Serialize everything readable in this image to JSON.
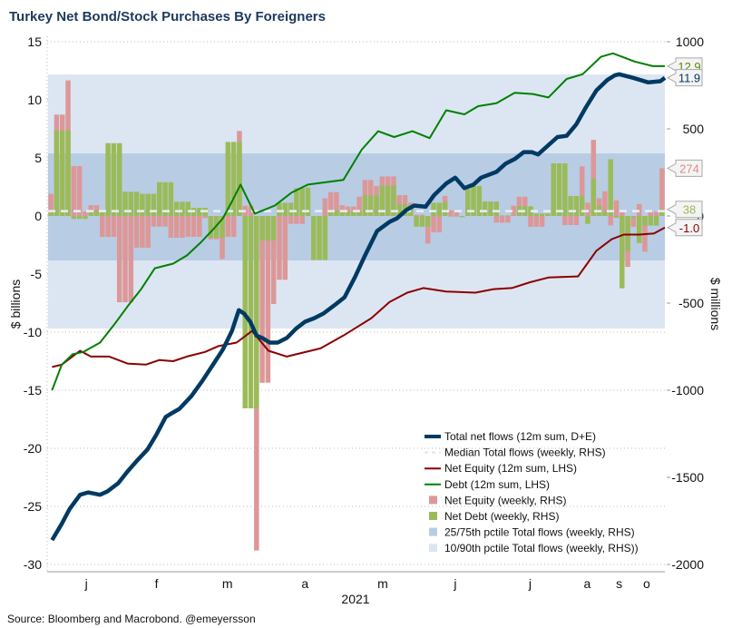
{
  "chart_data": {
    "type": "bar+line",
    "title": "Turkey Net Bond/Stock Purchases By Foreigners",
    "source": "Source: Bloomberg and Macrobond. @emeyersson",
    "xlabel": "2021",
    "ylabel_left": "$ billions",
    "ylabel_right": "$ millions",
    "ylim_left": [
      -30,
      15
    ],
    "ylim_right": [
      -2000,
      1000
    ],
    "yticks_left": [
      "15",
      "10",
      "5",
      "0",
      "-5",
      "-10",
      "-15",
      "-20",
      "-25",
      "-30"
    ],
    "yticks_right": [
      "1000",
      "500",
      "0",
      "-500",
      "-1000",
      "-1500",
      "-2000"
    ],
    "x_units": "weekly bar index (0-107)",
    "month_ticks": [
      {
        "label": "j",
        "pos": 6.2
      },
      {
        "label": "f",
        "pos": 18.5
      },
      {
        "label": "m",
        "pos": 30.9
      },
      {
        "label": "a",
        "pos": 44.5
      },
      {
        "label": "m",
        "pos": 58.1
      },
      {
        "label": "j",
        "pos": 70.8
      },
      {
        "label": "j",
        "pos": 83.9
      },
      {
        "label": "a",
        "pos": 93.9
      },
      {
        "label": "s",
        "pos": 99.5
      },
      {
        "label": "o",
        "pos": 104.3
      }
    ],
    "grid": true,
    "legend_placement": "bottom-right",
    "colors": {
      "total": "#003a63",
      "median": "#e8eef6",
      "equity_line": "#8b0000",
      "debt_line": "#008000",
      "equity_bar": "#dc9898",
      "debt_bar": "#9bbb59",
      "band_25_75": "#b8cce4",
      "band_10_90": "#dce6f2"
    },
    "bands": {
      "p10": -646,
      "p90": 812,
      "p25": -255,
      "p75": 359,
      "median": 28
    },
    "bars_equity_debt_rhs": [
      [
        127,
        31
      ],
      [
        582,
        491
      ],
      [
        582,
        491
      ],
      [
        778,
        491
      ],
      [
        286,
        -17
      ],
      [
        286,
        -17
      ],
      [
        26,
        -17
      ],
      [
        62,
        31
      ],
      [
        62,
        31
      ],
      [
        -120,
        22
      ],
      [
        -120,
        418
      ],
      [
        -120,
        418
      ],
      [
        -495,
        418
      ],
      [
        -495,
        139
      ],
      [
        -495,
        139
      ],
      [
        -182,
        139
      ],
      [
        -182,
        127
      ],
      [
        -182,
        127
      ],
      [
        -61,
        127
      ],
      [
        -61,
        194
      ],
      [
        -61,
        194
      ],
      [
        -125,
        194
      ],
      [
        -125,
        82
      ],
      [
        -125,
        82
      ],
      [
        -120,
        82
      ],
      [
        -120,
        47
      ],
      [
        -120,
        47
      ],
      [
        -12,
        47
      ],
      [
        -134,
        -125
      ],
      [
        -134,
        -125
      ],
      [
        -247,
        -125
      ],
      [
        -120,
        425
      ],
      [
        -120,
        425
      ],
      [
        488,
        425
      ],
      [
        59,
        -1104
      ],
      [
        59,
        -1104
      ],
      [
        -1920,
        -1104
      ],
      [
        -957,
        -141
      ],
      [
        -957,
        -141
      ],
      [
        -505,
        -141
      ],
      [
        -366,
        76
      ],
      [
        -366,
        76
      ],
      [
        -45,
        76
      ],
      [
        -45,
        160
      ],
      [
        -45,
        160
      ],
      [
        0,
        163
      ],
      [
        0,
        -253
      ],
      [
        0,
        -253
      ],
      [
        102,
        -253
      ],
      [
        137,
        33
      ],
      [
        137,
        33
      ],
      [
        62,
        33
      ],
      [
        54,
        24
      ],
      [
        54,
        24
      ],
      [
        111,
        24
      ],
      [
        207,
        118
      ],
      [
        207,
        118
      ],
      [
        172,
        118
      ],
      [
        227,
        175
      ],
      [
        227,
        175
      ],
      [
        227,
        175
      ],
      [
        120,
        68
      ],
      [
        120,
        68
      ],
      [
        76,
        59
      ],
      [
        7,
        -62
      ],
      [
        7,
        -62
      ],
      [
        -158,
        -62
      ],
      [
        -94,
        76
      ],
      [
        -94,
        76
      ],
      [
        115,
        80
      ],
      [
        33,
        -3
      ],
      [
        33,
        -3
      ],
      [
        0,
        -7
      ],
      [
        0,
        155
      ],
      [
        0,
        172
      ],
      [
        0,
        172
      ],
      [
        0,
        83
      ],
      [
        0,
        83
      ],
      [
        -38,
        83
      ],
      [
        -38,
        3
      ],
      [
        -38,
        3
      ],
      [
        59,
        3
      ],
      [
        111,
        56
      ],
      [
        111,
        56
      ],
      [
        -62,
        56
      ],
      [
        -62,
        14
      ],
      [
        -62,
        14
      ],
      [
        0,
        14
      ],
      [
        0,
        302
      ],
      [
        0,
        302
      ],
      [
        -52,
        302
      ],
      [
        -52,
        115
      ],
      [
        -52,
        115
      ],
      [
        285,
        115
      ],
      [
        76,
        -45
      ],
      [
        437,
        212
      ],
      [
        102,
        59
      ],
      [
        142,
        24
      ],
      [
        -54,
        326
      ],
      [
        90,
        -10
      ],
      [
        33,
        -415
      ],
      [
        -292,
        -201
      ],
      [
        -62,
        -10
      ],
      [
        68,
        -155
      ],
      [
        -205,
        -55
      ],
      [
        24,
        -55
      ],
      [
        24,
        -55
      ],
      [
        274,
        38
      ]
    ],
    "series": [
      {
        "name": "Total net flows (12m sum, D+E)",
        "axis": "left",
        "points": [
          [
            0.2,
            -27.9
          ],
          [
            1.9,
            -26.5
          ],
          [
            3.3,
            -25.2
          ],
          [
            5.1,
            -24.0
          ],
          [
            6.5,
            -23.8
          ],
          [
            8.6,
            -24.0
          ],
          [
            9.9,
            -23.7
          ],
          [
            11.8,
            -23.0
          ],
          [
            13.4,
            -22.0
          ],
          [
            15.0,
            -21.1
          ],
          [
            16.9,
            -20.1
          ],
          [
            18.5,
            -18.8
          ],
          [
            20.1,
            -17.3
          ],
          [
            21.1,
            -17.0
          ],
          [
            22.5,
            -16.6
          ],
          [
            24.6,
            -15.5
          ],
          [
            26.5,
            -14.2
          ],
          [
            28.5,
            -12.7
          ],
          [
            30.1,
            -11.5
          ],
          [
            31.7,
            -9.9
          ],
          [
            32.9,
            -8.1
          ],
          [
            33.8,
            -8.4
          ],
          [
            34.9,
            -9.1
          ],
          [
            36.0,
            -10.3
          ],
          [
            37.0,
            -10.5
          ],
          [
            38.3,
            -10.9
          ],
          [
            39.7,
            -10.9
          ],
          [
            41.3,
            -10.5
          ],
          [
            42.9,
            -9.7
          ],
          [
            44.5,
            -9.1
          ],
          [
            46.1,
            -8.8
          ],
          [
            47.7,
            -8.4
          ],
          [
            49.6,
            -7.7
          ],
          [
            51.4,
            -7.0
          ],
          [
            53.3,
            -5.2
          ],
          [
            54.9,
            -3.5
          ],
          [
            57.1,
            -1.3
          ],
          [
            59.3,
            -0.5
          ],
          [
            60.6,
            -0.2
          ],
          [
            62.2,
            0.5
          ],
          [
            63.6,
            0.9
          ],
          [
            65.6,
            0.8
          ],
          [
            67.1,
            1.8
          ],
          [
            69.2,
            2.8
          ],
          [
            70.8,
            3.3
          ],
          [
            72.4,
            2.4
          ],
          [
            74.0,
            2.7
          ],
          [
            75.3,
            3.3
          ],
          [
            78.0,
            3.8
          ],
          [
            79.6,
            4.5
          ],
          [
            81.2,
            4.9
          ],
          [
            82.8,
            5.5
          ],
          [
            84.2,
            5.5
          ],
          [
            85.3,
            5.3
          ],
          [
            87.1,
            6.1
          ],
          [
            88.7,
            6.8
          ],
          [
            90.3,
            6.9
          ],
          [
            92.0,
            7.9
          ],
          [
            93.6,
            9.3
          ],
          [
            95.5,
            10.8
          ],
          [
            97.4,
            11.7
          ],
          [
            98.7,
            12.1
          ],
          [
            99.5,
            12.2
          ],
          [
            101.9,
            11.9
          ],
          [
            104.6,
            11.5
          ],
          [
            106.7,
            11.6
          ],
          [
            107.5,
            11.9
          ]
        ]
      },
      {
        "name": "Net Equity (12m sum, LHS)",
        "axis": "left",
        "points": [
          [
            0.2,
            -13.0
          ],
          [
            1.9,
            -12.8
          ],
          [
            5.1,
            -11.6
          ],
          [
            7.0,
            -12.1
          ],
          [
            10.2,
            -12.1
          ],
          [
            13.4,
            -12.7
          ],
          [
            16.6,
            -12.8
          ],
          [
            19.0,
            -12.4
          ],
          [
            21.4,
            -12.5
          ],
          [
            23.8,
            -12.1
          ],
          [
            27.0,
            -11.7
          ],
          [
            29.3,
            -11.2
          ],
          [
            32.5,
            -10.9
          ],
          [
            35.2,
            -9.9
          ],
          [
            38.1,
            -11.6
          ],
          [
            41.3,
            -12.1
          ],
          [
            47.2,
            -11.4
          ],
          [
            51.2,
            -10.3
          ],
          [
            56.1,
            -8.8
          ],
          [
            59.3,
            -7.4
          ],
          [
            62.4,
            -6.6
          ],
          [
            65.2,
            -6.2
          ],
          [
            69.2,
            -6.5
          ],
          [
            74.3,
            -6.6
          ],
          [
            77.5,
            -6.3
          ],
          [
            80.7,
            -6.2
          ],
          [
            83.9,
            -5.7
          ],
          [
            87.1,
            -5.3
          ],
          [
            92.3,
            -5.2
          ],
          [
            93.9,
            -4.1
          ],
          [
            95.5,
            -3.0
          ],
          [
            98.2,
            -2.0
          ],
          [
            100.3,
            -1.6
          ],
          [
            103.0,
            -1.6
          ],
          [
            105.6,
            -1.5
          ],
          [
            107.5,
            -1.0
          ]
        ]
      },
      {
        "name": "Debt (12m sum, LHS)",
        "axis": "left",
        "points": [
          [
            0.2,
            -15.0
          ],
          [
            1.9,
            -12.8
          ],
          [
            3.8,
            -11.9
          ],
          [
            5.7,
            -11.7
          ],
          [
            8.6,
            -10.9
          ],
          [
            11.0,
            -9.4
          ],
          [
            13.4,
            -7.8
          ],
          [
            15.8,
            -6.3
          ],
          [
            18.2,
            -4.5
          ],
          [
            21.4,
            -4.1
          ],
          [
            23.8,
            -3.4
          ],
          [
            26.2,
            -2.3
          ],
          [
            28.5,
            -1.1
          ],
          [
            30.1,
            -0.2
          ],
          [
            31.7,
            1.25
          ],
          [
            33.2,
            2.7
          ],
          [
            35.7,
            0.2
          ],
          [
            39.2,
            0.9
          ],
          [
            42.1,
            2.0
          ],
          [
            45.0,
            2.7
          ],
          [
            51.2,
            3.1
          ],
          [
            54.4,
            5.7
          ],
          [
            57.3,
            7.3
          ],
          [
            60.1,
            6.8
          ],
          [
            63.3,
            7.3
          ],
          [
            66.3,
            6.7
          ],
          [
            69.2,
            9.1
          ],
          [
            72.4,
            8.75
          ],
          [
            74.8,
            9.45
          ],
          [
            78.0,
            9.7
          ],
          [
            81.2,
            10.6
          ],
          [
            84.4,
            10.5
          ],
          [
            87.1,
            10.2
          ],
          [
            90.3,
            11.8
          ],
          [
            93.1,
            12.2
          ],
          [
            96.3,
            13.7
          ],
          [
            98.4,
            14.0
          ],
          [
            100.0,
            13.7
          ],
          [
            102.2,
            13.3
          ],
          [
            105.4,
            12.9
          ],
          [
            107.5,
            12.9
          ]
        ]
      }
    ],
    "end_labels": [
      {
        "text": "12.9",
        "axis": "left",
        "value": 12.9,
        "color": "#5a8a00"
      },
      {
        "text": "11.9",
        "axis": "left",
        "value": 11.9,
        "color": "#003a63"
      },
      {
        "text": "274",
        "axis": "right",
        "value": 274,
        "color": "#dc8a8a"
      },
      {
        "text": "38",
        "axis": "right",
        "value": 38,
        "color": "#9bbb59"
      },
      {
        "text": "-1.0",
        "axis": "left",
        "value": -1.0,
        "color": "#8b0000"
      }
    ],
    "legend": [
      {
        "label": "Total net flows (12m sum, D+E)",
        "kind": "thick-line",
        "color": "#003a63"
      },
      {
        "label": "Median Total flows (weekly, RHS)",
        "kind": "dash",
        "color": "#dce6f2"
      },
      {
        "label": "Net Equity (12m sum, LHS)",
        "kind": "line",
        "color": "#8b0000"
      },
      {
        "label": "Debt (12m sum, LHS)",
        "kind": "line",
        "color": "#008000"
      },
      {
        "label": "Net Equity (weekly, RHS)",
        "kind": "box",
        "color": "#dc9898"
      },
      {
        "label": "Net Debt (weekly, RHS)",
        "kind": "box",
        "color": "#9bbb59"
      },
      {
        "label": "25/75th pctile Total flows (weekly, RHS)",
        "kind": "box",
        "color": "#b8cce4"
      },
      {
        "label": "10/90th pctile Total flows (weekly, RHS))",
        "kind": "box",
        "color": "#dce6f2"
      }
    ]
  }
}
